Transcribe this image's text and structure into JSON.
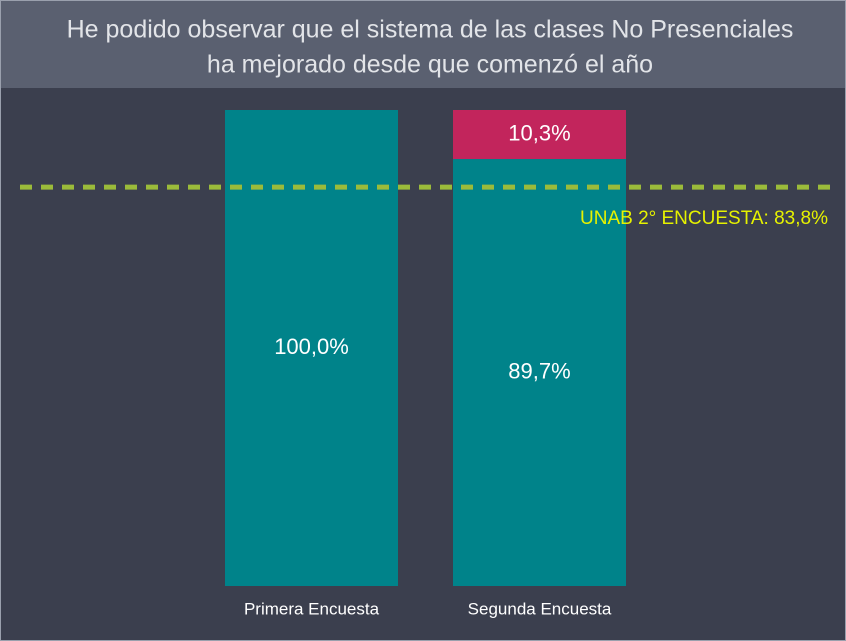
{
  "chart_data": {
    "type": "bar",
    "stacked": true,
    "title": [
      "He podido observar que el sistema de las clases No Presenciales",
      "ha mejorado desde que comenzó el año"
    ],
    "categories": [
      "Primera Encuesta",
      "Segunda Encuesta"
    ],
    "series": [
      {
        "color": "#00838a",
        "values": [
          100.0,
          89.7
        ],
        "value_labels": [
          "100,0%",
          "89,7%"
        ]
      },
      {
        "color": "#c2255c",
        "values": [
          null,
          10.3
        ],
        "value_labels": [
          null,
          "10,3%"
        ]
      }
    ],
    "ylim": [
      0,
      100
    ],
    "reference_line": {
      "value": 83.8,
      "label": "UNAB 2° ENCUESTA: 83,8%",
      "color": "#9bbb3a",
      "label_color": "#e6f200"
    }
  }
}
